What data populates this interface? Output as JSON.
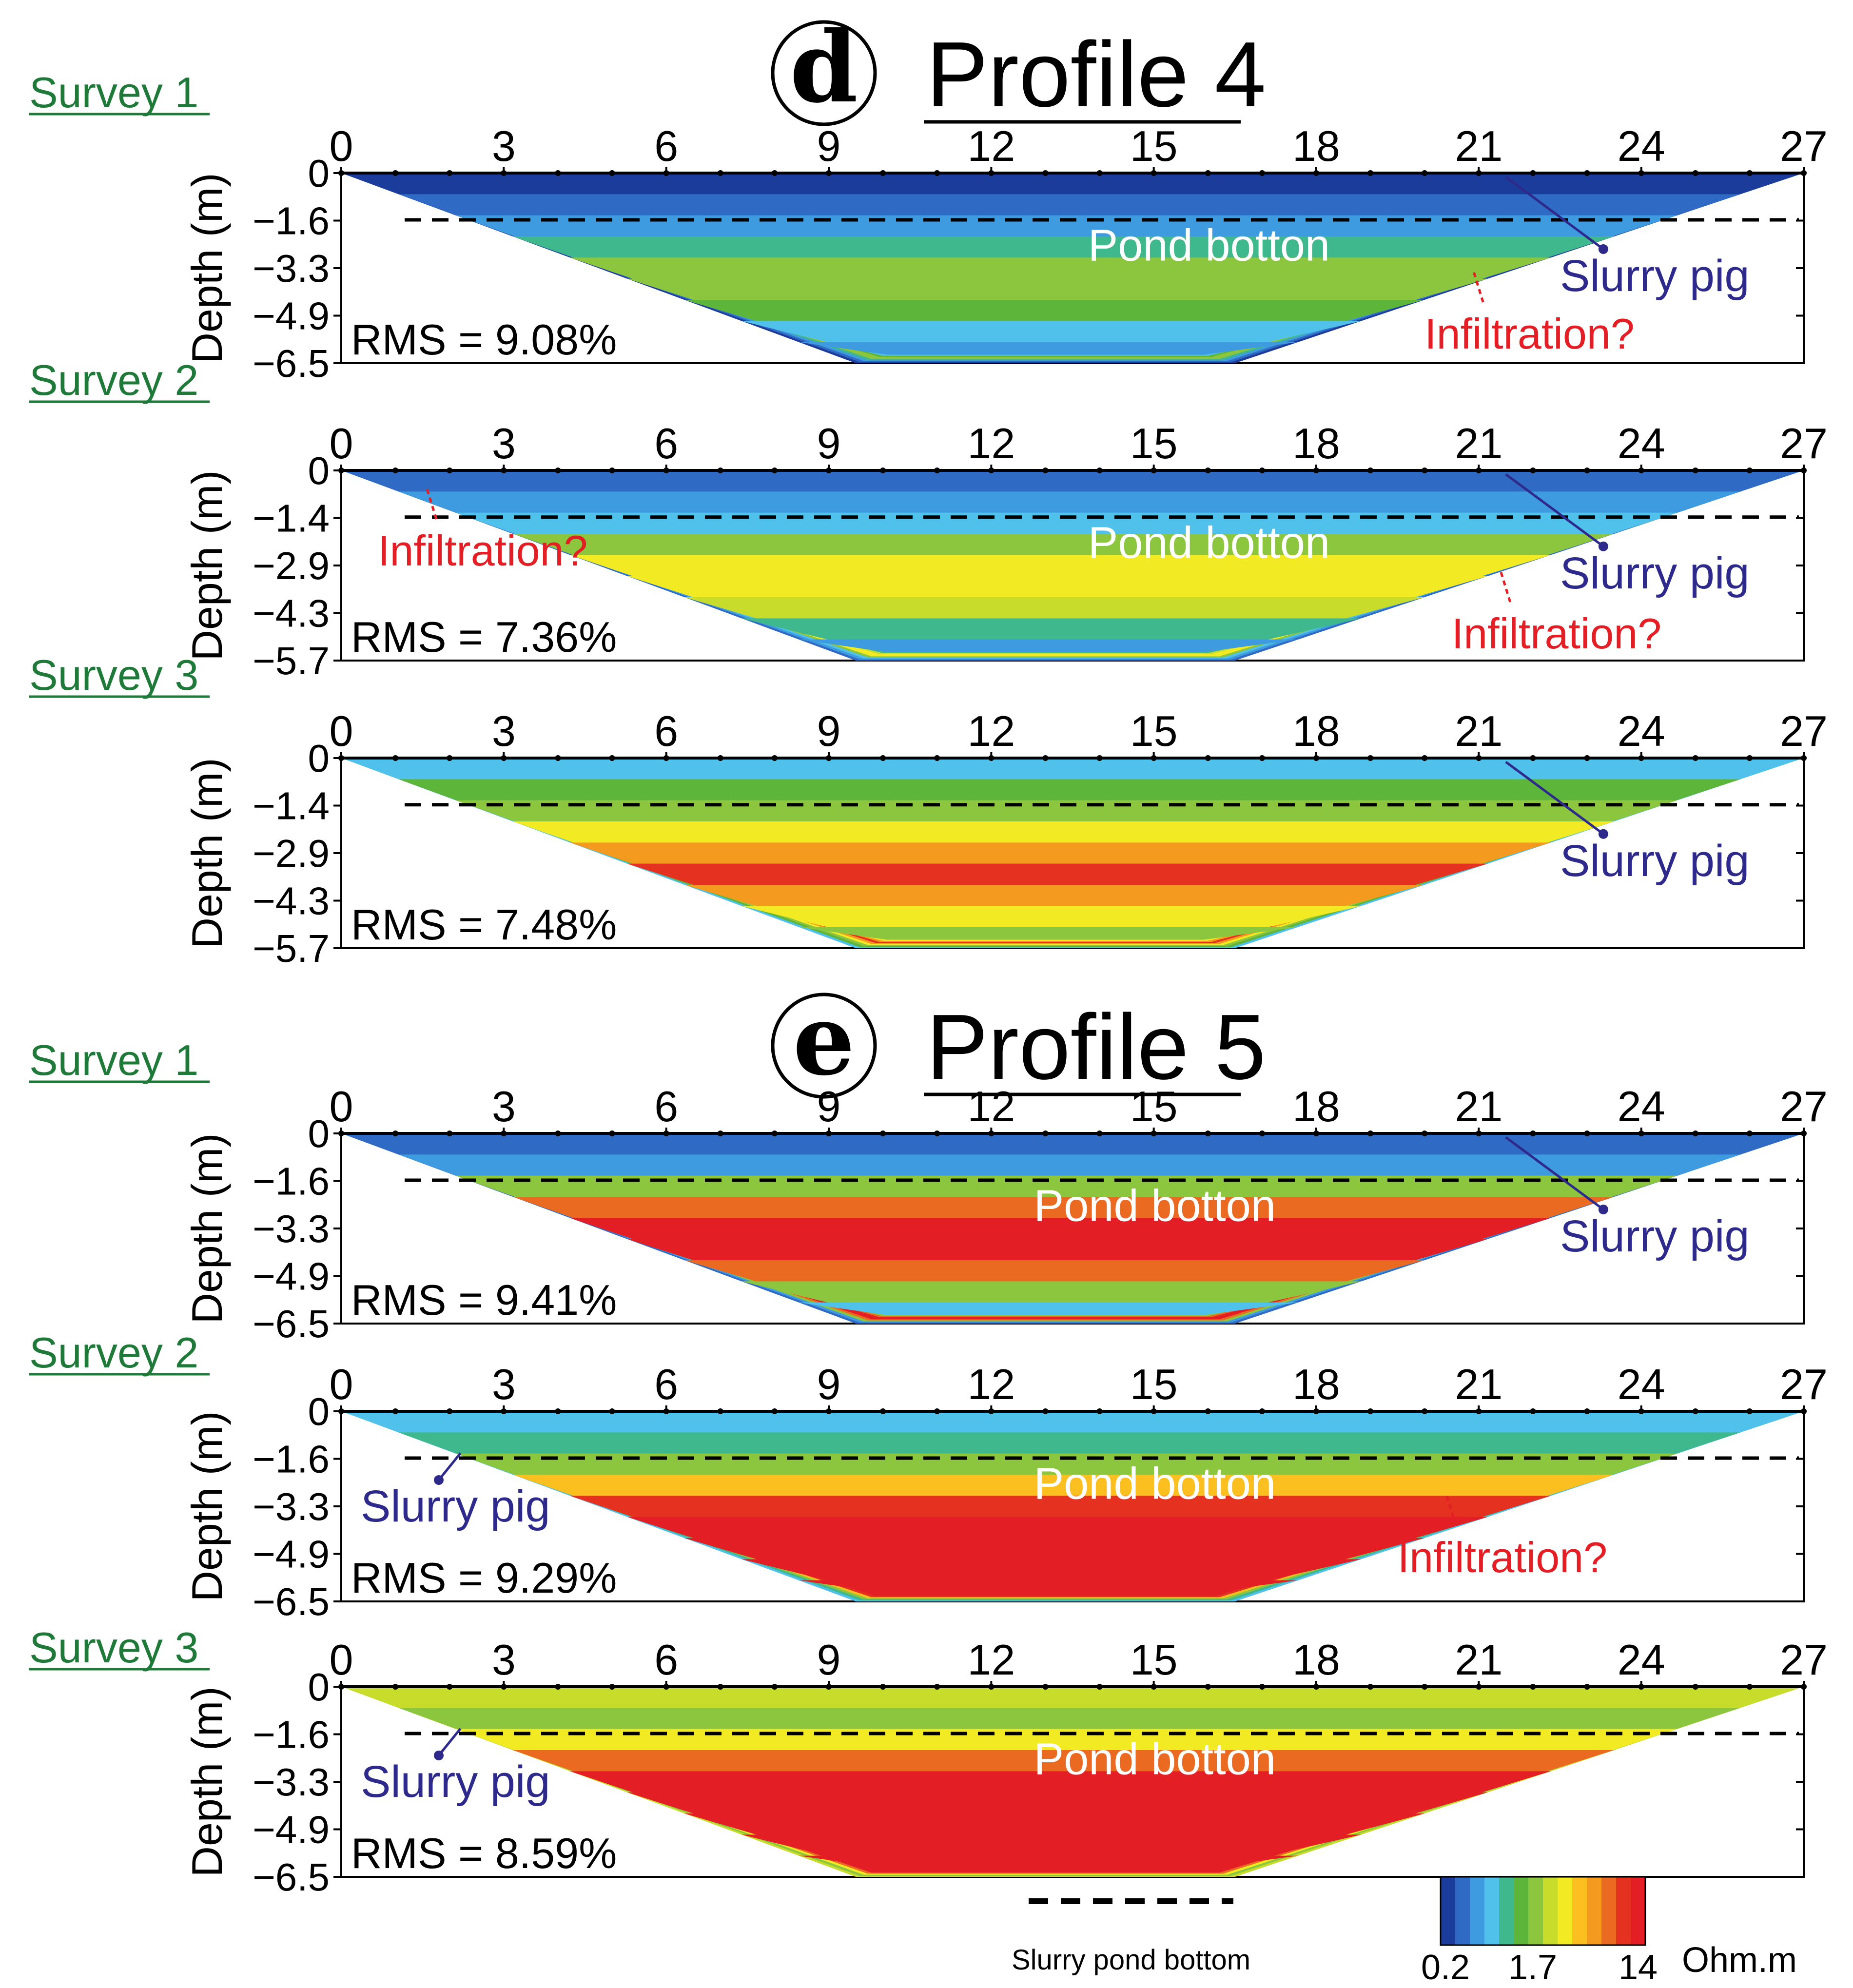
{
  "colors": {
    "scale": [
      "#1b3c9a",
      "#2f6bc4",
      "#3f9be0",
      "#4fc1ea",
      "#3fb88e",
      "#5db53a",
      "#8cc63f",
      "#c8dc2b",
      "#f2ea22",
      "#fbbf1f",
      "#f39a1f",
      "#ea6a22",
      "#e5311f",
      "#e31e24"
    ],
    "survey_label": "#1f7a3a",
    "slurry_pig": "#2e2a8c",
    "infiltration": "#e31e24",
    "pond_label": "#ffffff"
  },
  "chart_data": {
    "type": "heatmap",
    "x_ticks": [
      0,
      3,
      6,
      9,
      12,
      15,
      18,
      21,
      24,
      27
    ],
    "xlim": [
      0,
      27
    ],
    "ylabel": "Depth (m)",
    "profiles": [
      {
        "id": "d",
        "letter": "d",
        "title": "Profile 4",
        "panels": [
          {
            "survey": "Survey 1",
            "rms": "RMS = 9.08%",
            "y_ticks": [
              "0",
              "−1.6",
              "−3.3",
              "−4.9",
              "−6.5"
            ],
            "max_depth": 6.5,
            "pond_bottom_depth": 1.6,
            "x_tick_labels": [
              "0",
              "3",
              "6",
              "9",
              "12",
              "15",
              "18",
              "21",
              "24",
              "27"
            ],
            "layers": [
              0,
              1,
              2,
              4,
              6,
              6,
              5,
              3,
              2
            ],
            "annotations": [
              {
                "text": "Pond botton",
                "kind": "pond"
              },
              {
                "text": "Slurry pig",
                "kind": "pig"
              },
              {
                "text": "Infiltration?",
                "kind": "infil"
              }
            ]
          },
          {
            "survey": "Survey 2",
            "rms": "RMS = 7.36%",
            "y_ticks": [
              "0",
              "−1.4",
              "−2.9",
              "−4.3",
              "−5.7"
            ],
            "max_depth": 5.7,
            "pond_bottom_depth": 1.4,
            "x_tick_labels": [
              "0",
              "3",
              "6",
              "9",
              "12",
              "15",
              "18",
              "21",
              "24",
              "27"
            ],
            "layers": [
              1,
              2,
              3,
              6,
              8,
              8,
              7,
              4,
              2
            ],
            "annotations": [
              {
                "text": "Pond botton",
                "kind": "pond"
              },
              {
                "text": "Slurry pig",
                "kind": "pig"
              },
              {
                "text": "Infiltration?",
                "kind": "infil"
              },
              {
                "text": "Infiltration?",
                "kind": "infil"
              }
            ]
          },
          {
            "survey": "Survey 3",
            "rms": "RMS = 7.48%",
            "y_ticks": [
              "0",
              "−1.4",
              "−2.9",
              "−4.3",
              "−5.7"
            ],
            "max_depth": 5.7,
            "pond_bottom_depth": 1.4,
            "x_tick_labels": [
              "0",
              "3",
              "6",
              "9",
              "12",
              "15",
              "18",
              "21",
              "24",
              "27"
            ],
            "layers": [
              3,
              5,
              6,
              8,
              10,
              12,
              10,
              8,
              6
            ],
            "annotations": [
              {
                "text": "Slurry pig",
                "kind": "pig"
              }
            ]
          }
        ]
      },
      {
        "id": "e",
        "letter": "e",
        "title": "Profile 5",
        "panels": [
          {
            "survey": "Survey 1",
            "rms": "RMS = 9.41%",
            "y_ticks": [
              "0",
              "−1.6",
              "−3.3",
              "−4.9",
              "−6.5"
            ],
            "max_depth": 6.5,
            "pond_bottom_depth": 1.6,
            "x_tick_labels": [
              "0",
              "3",
              "6",
              "9",
              "12",
              "15",
              "18",
              "21",
              "24",
              "27"
            ],
            "layers": [
              1,
              2,
              6,
              11,
              13,
              13,
              11,
              6,
              3
            ],
            "annotations": [
              {
                "text": "Pond botton",
                "kind": "pond"
              },
              {
                "text": "Slurry pig",
                "kind": "pig"
              }
            ]
          },
          {
            "survey": "Survey 2",
            "rms": "RMS = 9.29%",
            "y_ticks": [
              "0",
              "−1.6",
              "−3.3",
              "−4.9",
              "−6.5"
            ],
            "max_depth": 6.5,
            "pond_bottom_depth": 1.6,
            "x_tick_labels": [
              "0",
              "3",
              "6",
              "9",
              "12",
              "15",
              "18",
              "21",
              "24",
              "27"
            ],
            "layers": [
              3,
              4,
              6,
              9,
              12,
              13,
              13,
              13,
              13
            ],
            "annotations": [
              {
                "text": "Slurry pig",
                "kind": "pig"
              },
              {
                "text": "Pond botton",
                "kind": "pond"
              },
              {
                "text": "Infiltration?",
                "kind": "infil"
              }
            ]
          },
          {
            "survey": "Survey 3",
            "rms": "RMS = 8.59%",
            "y_ticks": [
              "0",
              "−1.6",
              "−3.3",
              "−4.9",
              "−6.5"
            ],
            "max_depth": 6.5,
            "pond_bottom_depth": 1.6,
            "x_tick_labels": [
              "0",
              "3",
              "6",
              "9",
              "12",
              "15",
              "18",
              "21",
              "24",
              "27"
            ],
            "layers": [
              7,
              6,
              8,
              11,
              13,
              13,
              13,
              13,
              13
            ],
            "annotations": [
              {
                "text": "Slurry pig",
                "kind": "pig"
              },
              {
                "text": "Pond botton",
                "kind": "pond"
              }
            ]
          }
        ]
      }
    ],
    "legend": {
      "line_label": "Slurry pond bottom",
      "colorbar_ticks": [
        "0.2",
        "1.7",
        "14"
      ],
      "unit": "Ohm.m"
    }
  }
}
